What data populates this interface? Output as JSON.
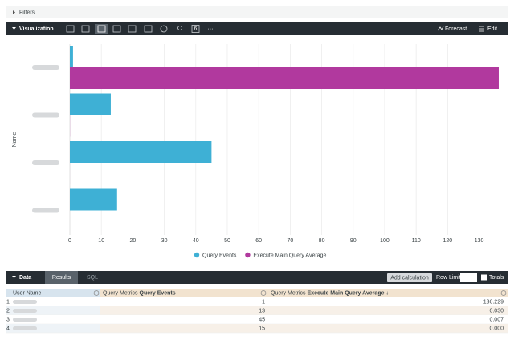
{
  "filters": {
    "label": "Filters"
  },
  "visualization_bar": {
    "label": "Visualization",
    "badge": "6",
    "more": "···",
    "forecast": "Forecast",
    "edit": "Edit"
  },
  "chart_data": {
    "type": "hbar",
    "y_axis_label": "Name",
    "categories": [
      null,
      null,
      null,
      null
    ],
    "series": [
      {
        "name": "Query Events",
        "color": "#3eb0d5",
        "values": [
          1,
          13,
          45,
          15
        ]
      },
      {
        "name": "Execute Main Query Average",
        "color": "#b1399e",
        "values": [
          136.229,
          0.03,
          0.007,
          0.0
        ],
        "value_labels": [
          "136.229",
          "0.030",
          "0.007",
          "0.000"
        ]
      }
    ],
    "xlim": [
      0,
      137
    ],
    "xticks": [
      0,
      10,
      20,
      30,
      40,
      50,
      60,
      70,
      80,
      90,
      100,
      110,
      120,
      130
    ],
    "grid": true,
    "legend": "bottom"
  },
  "data_bar": {
    "label": "Data",
    "tabs": [
      "Results",
      "SQL"
    ],
    "add_calculation": "Add calculation",
    "row_limit": "Row Limit",
    "totals": "Totals"
  },
  "table": {
    "columns": [
      {
        "field": "User Name"
      },
      {
        "group": "Query Metrics",
        "field": "Query Events"
      },
      {
        "group": "Query Metrics",
        "field": "Execute Main Query Average",
        "sort": "↓"
      }
    ],
    "row_numbers": [
      "1",
      "2",
      "3",
      "4"
    ]
  }
}
